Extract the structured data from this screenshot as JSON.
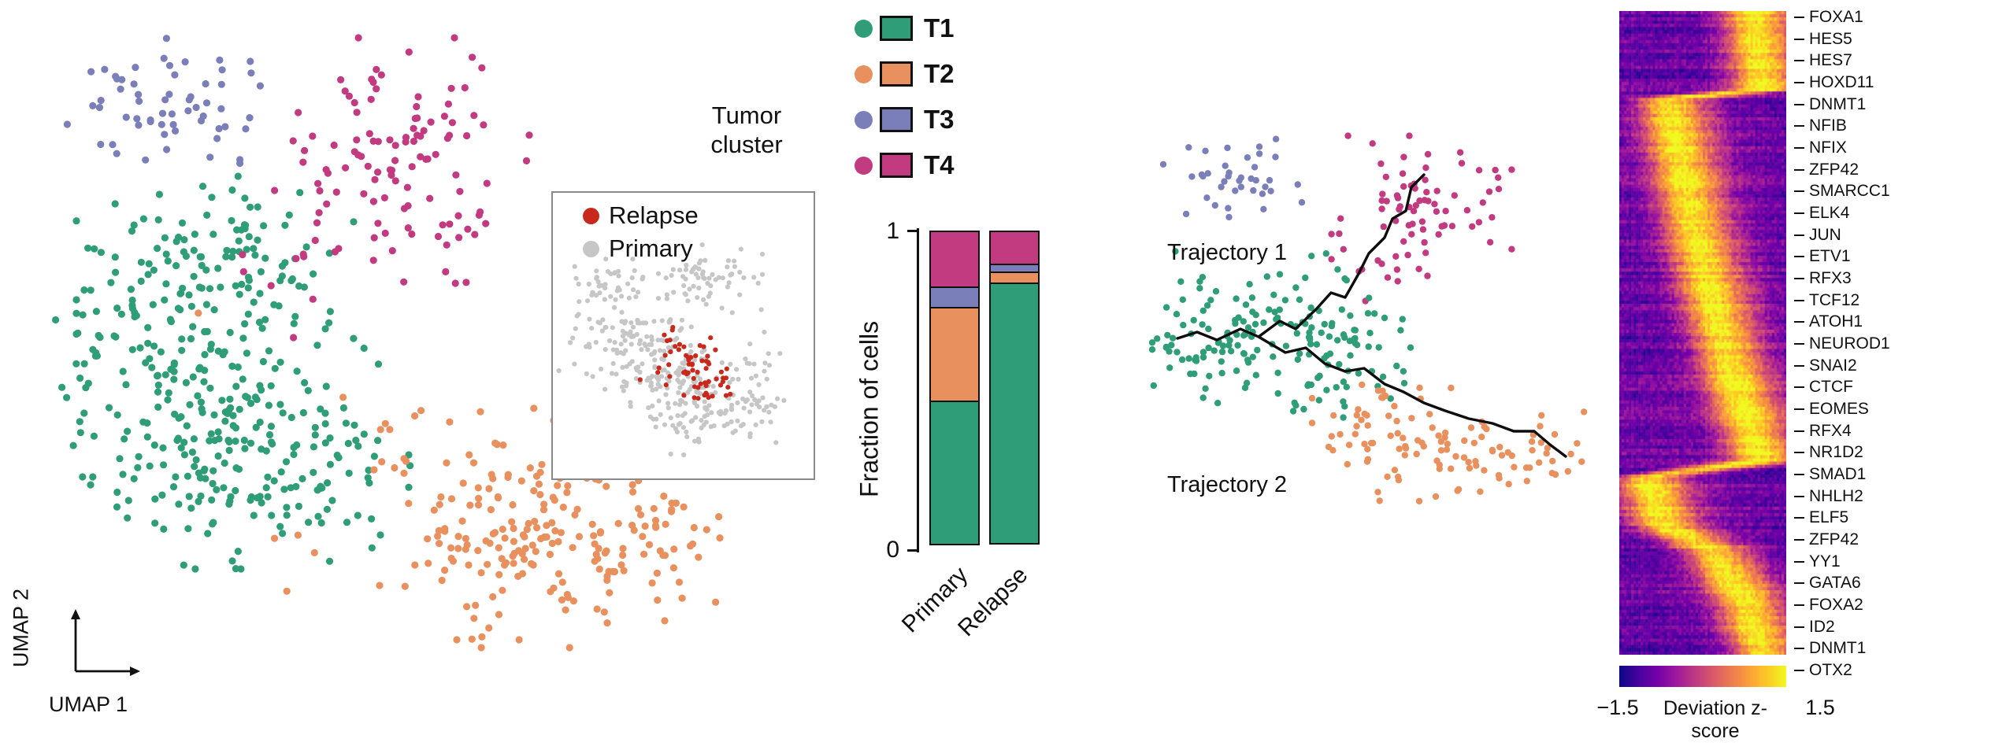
{
  "palette": {
    "t1": "#2f9e78",
    "t2": "#e8915f",
    "t3": "#7b7fb9",
    "t4": "#c23a80",
    "relapse": "#c9281c",
    "primary": "#c6c6c6",
    "trajectory": "#0d0d0d"
  },
  "umap_panel": {
    "xlabel": "UMAP 1",
    "ylabel": "UMAP 2"
  },
  "inset_legend": {
    "items": [
      {
        "label": "Relapse",
        "color_key": "relapse"
      },
      {
        "label": "Primary",
        "color_key": "primary"
      }
    ]
  },
  "cluster_legend": {
    "title_line1": "Tumor",
    "title_line2": "cluster",
    "items": [
      {
        "label": "T1",
        "color_key": "t1"
      },
      {
        "label": "T2",
        "color_key": "t2"
      },
      {
        "label": "T3",
        "color_key": "t3"
      },
      {
        "label": "T4",
        "color_key": "t4"
      }
    ]
  },
  "bar_chart": {
    "ylabel": "Fraction of cells",
    "yticks": [
      "1",
      "0"
    ]
  },
  "trajectory_panel": {
    "labels": [
      "Trajectory 1",
      "Trajectory 2"
    ]
  },
  "heatmap": {
    "genes": [
      "FOXA1",
      "HES5",
      "HES7",
      "HOXD11",
      "DNMT1",
      "NFIB",
      "NFIX",
      "ZFP42",
      "SMARCC1",
      "ELK4",
      "JUN",
      "ETV1",
      "RFX3",
      "TCF12",
      "ATOH1",
      "NEUROD1",
      "SNAI2",
      "CTCF",
      "EOMES",
      "RFX4",
      "NR1D2",
      "SMAD1",
      "NHLH2",
      "ELF5",
      "ZFP42",
      "YY1",
      "GATA6",
      "FOXA2",
      "ID2",
      "DNMT1",
      "OTX2"
    ],
    "colorbar": {
      "min": "−1.5",
      "max": "1.5",
      "label": "Deviation z-score"
    },
    "colormap": [
      "#0d0887",
      "#46039f",
      "#7201a8",
      "#9c179e",
      "#bd3786",
      "#d8576b",
      "#ed7953",
      "#fb9f3a",
      "#fdca26",
      "#f0f921"
    ]
  },
  "chart_data": [
    {
      "type": "scatter",
      "title": "Tumor cluster UMAP",
      "xlabel": "UMAP 1",
      "ylabel": "UMAP 2",
      "point_radius": 4.6,
      "series": [
        {
          "name": "T1",
          "color_key": "t1",
          "blobs": [
            [
              235,
              330,
              80,
              55,
              110
            ],
            [
              150,
              455,
              70,
              65,
              100
            ],
            [
              290,
              515,
              80,
              60,
              95
            ],
            [
              215,
              605,
              70,
              50,
              70
            ],
            [
              360,
              625,
              55,
              45,
              35
            ],
            [
              430,
              560,
              25,
              25,
              8
            ]
          ]
        },
        {
          "name": "T2",
          "color_key": "t2",
          "blobs": [
            [
              640,
              600,
              75,
              50,
              75
            ],
            [
              700,
              705,
              80,
              50,
              85
            ],
            [
              565,
              695,
              55,
              50,
              45
            ],
            [
              790,
              630,
              45,
              38,
              28
            ],
            [
              455,
              545,
              30,
              30,
              8
            ],
            [
              350,
              705,
              22,
              22,
              4
            ],
            [
              205,
              390,
              7,
              7,
              1
            ]
          ]
        },
        {
          "name": "T3",
          "color_key": "t3",
          "blobs": [
            [
              175,
              120,
              58,
              36,
              52
            ],
            [
              260,
              165,
              25,
              20,
              8
            ]
          ]
        },
        {
          "name": "T4",
          "color_key": "t4",
          "blobs": [
            [
              480,
              150,
              70,
              50,
              55
            ],
            [
              435,
              245,
              60,
              50,
              40
            ],
            [
              540,
              275,
              40,
              35,
              18
            ],
            [
              330,
              355,
              30,
              30,
              5
            ],
            [
              370,
              310,
              20,
              20,
              3
            ]
          ]
        }
      ]
    },
    {
      "type": "scatter",
      "title": "Relapse vs primary inset",
      "point_radius": 3.1,
      "series": [
        {
          "name": "Primary",
          "color_key": "primary",
          "blobs": [
            [
              70,
              115,
              24,
              14,
              40
            ],
            [
              200,
              110,
              30,
              20,
              65
            ],
            [
              100,
              190,
              42,
              28,
              115
            ],
            [
              150,
              240,
              35,
              24,
              80
            ],
            [
              225,
              270,
              35,
              22,
              75
            ],
            [
              165,
              300,
              25,
              15,
              30
            ],
            [
              255,
              210,
              20,
              15,
              15
            ]
          ]
        },
        {
          "name": "Relapse",
          "color_key": "relapse",
          "blobs": [
            [
              168,
              218,
              26,
              20,
              45
            ],
            [
              190,
              255,
              16,
              13,
              12
            ],
            [
              148,
              182,
              11,
              9,
              5
            ],
            [
              215,
              240,
              18,
              13,
              5
            ]
          ]
        }
      ]
    },
    {
      "type": "bar",
      "stacked": true,
      "title": "Fraction of cells per tumor cluster",
      "categories": [
        "Primary",
        "Relapse"
      ],
      "series": [
        {
          "name": "T1",
          "color_key": "t1",
          "values": [
            0.45,
            0.82
          ]
        },
        {
          "name": "T2",
          "color_key": "t2",
          "values": [
            0.3,
            0.04
          ]
        },
        {
          "name": "T3",
          "color_key": "t3",
          "values": [
            0.07,
            0.03
          ]
        },
        {
          "name": "T4",
          "color_key": "t4",
          "values": [
            0.18,
            0.11
          ]
        }
      ],
      "ylabel": "Fraction of cells",
      "ylim": [
        0,
        1
      ],
      "yticks": [
        1,
        0
      ]
    },
    {
      "type": "scatter",
      "title": "Differentiation trajectories",
      "point_radius": 4.2,
      "series": [
        {
          "name": "T3",
          "color_key": "t3",
          "blobs": [
            [
              125,
              85,
              40,
              24,
              38
            ]
          ]
        },
        {
          "name": "T4",
          "color_key": "t4",
          "blobs": [
            [
              365,
              125,
              52,
              42,
              72
            ],
            [
              300,
              195,
              28,
              22,
              8
            ]
          ]
        },
        {
          "name": "T1",
          "color_key": "t1",
          "blobs": [
            [
              175,
              285,
              80,
              48,
              140
            ],
            [
              90,
              290,
              32,
              28,
              25
            ],
            [
              255,
              330,
              40,
              30,
              20
            ]
          ]
        },
        {
          "name": "T2",
          "color_key": "t2",
          "blobs": [
            [
              380,
              430,
              70,
              35,
              65
            ],
            [
              480,
              445,
              45,
              28,
              25
            ],
            [
              305,
              395,
              38,
              28,
              20
            ],
            [
              540,
              450,
              20,
              15,
              6
            ]
          ]
        }
      ],
      "trajectories": [
        {
          "name": "Trajectory 1",
          "points": [
            [
              55,
              290
            ],
            [
              80,
              282
            ],
            [
              105,
              292
            ],
            [
              135,
              278
            ],
            [
              158,
              288
            ],
            [
              185,
              268
            ],
            [
              205,
              278
            ],
            [
              232,
              252
            ],
            [
              250,
              232
            ],
            [
              268,
              238
            ],
            [
              285,
              208
            ],
            [
              298,
              182
            ],
            [
              318,
              162
            ],
            [
              328,
              138
            ],
            [
              345,
              128
            ],
            [
              352,
              98
            ],
            [
              368,
              82
            ]
          ]
        },
        {
          "name": "Trajectory 2",
          "points": [
            [
              158,
              288
            ],
            [
              192,
              308
            ],
            [
              218,
              302
            ],
            [
              242,
              322
            ],
            [
              268,
              332
            ],
            [
              292,
              328
            ],
            [
              318,
              348
            ],
            [
              342,
              358
            ],
            [
              368,
              372
            ],
            [
              395,
              382
            ],
            [
              425,
              392
            ],
            [
              455,
              398
            ],
            [
              482,
              408
            ],
            [
              508,
              408
            ],
            [
              528,
              425
            ],
            [
              548,
              440
            ]
          ]
        }
      ]
    },
    {
      "type": "heatmap",
      "title": "TF motif deviation z-scores along trajectory",
      "rows": 200,
      "cols": 70,
      "row_labels": [
        "FOXA1",
        "HES5",
        "HES7",
        "HOXD11",
        "DNMT1",
        "NFIB",
        "NFIX",
        "ZFP42",
        "SMARCC1",
        "ELK4",
        "JUN",
        "ETV1",
        "RFX3",
        "TCF12",
        "ATOH1",
        "NEUROD1",
        "SNAI2",
        "CTCF",
        "EOMES",
        "RFX4",
        "NR1D2",
        "SMAD1",
        "NHLH2",
        "ELF5",
        "ZFP42",
        "YY1",
        "GATA6",
        "FOXA2",
        "ID2",
        "DNMT1",
        "OTX2"
      ],
      "value_range": [
        -1.5,
        1.5
      ],
      "colorbar_label": "Deviation z-score",
      "ridge_keyframes": [
        [
          0,
          0.8
        ],
        [
          0.12,
          0.86
        ],
        [
          0.135,
          0.28
        ],
        [
          0.35,
          0.45
        ],
        [
          0.55,
          0.65
        ],
        [
          0.7,
          0.85
        ],
        [
          0.725,
          0.15
        ],
        [
          0.8,
          0.25
        ],
        [
          0.84,
          0.55
        ],
        [
          0.92,
          0.75
        ],
        [
          1,
          0.86
        ]
      ],
      "ridge_sigma": 0.13,
      "noise": 0.55
    }
  ]
}
